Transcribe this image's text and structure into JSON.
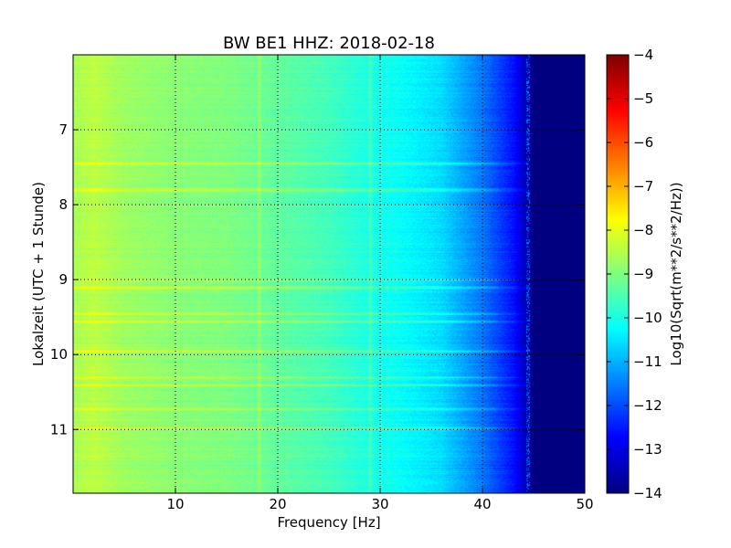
{
  "chart_data": {
    "type": "heatmap",
    "title": "BW BE1 HHZ: 2018-02-18",
    "xlabel": "Frequency [Hz]",
    "ylabel": "Lokalzeit (UTC + 1 Stunde)",
    "xlim": [
      0,
      50
    ],
    "ylim": [
      11.85,
      6.0
    ],
    "y_axis_inverted": true,
    "x_ticks": [
      10,
      20,
      30,
      40,
      50
    ],
    "y_ticks": [
      7,
      8,
      9,
      10,
      11
    ],
    "grid": true,
    "colorbar": {
      "label": "Log10(Sqrt(m**2/s**2/Hz))",
      "range": [
        -14,
        -4
      ],
      "ticks": [
        -4,
        -5,
        -6,
        -7,
        -8,
        -9,
        -10,
        -11,
        -12,
        -13,
        -14
      ],
      "colormap": "jet"
    },
    "frequency_profile": [
      {
        "freq": 0,
        "value": -8.6
      },
      {
        "freq": 2,
        "value": -8.4
      },
      {
        "freq": 5,
        "value": -8.7
      },
      {
        "freq": 10,
        "value": -8.9
      },
      {
        "freq": 15,
        "value": -9.0
      },
      {
        "freq": 20,
        "value": -9.3
      },
      {
        "freq": 25,
        "value": -9.6
      },
      {
        "freq": 28,
        "value": -9.9
      },
      {
        "freq": 32,
        "value": -10.2
      },
      {
        "freq": 36,
        "value": -10.6
      },
      {
        "freq": 40,
        "value": -11.6
      },
      {
        "freq": 43,
        "value": -12.6
      },
      {
        "freq": 45,
        "value": -14.0
      },
      {
        "freq": 50,
        "value": -14.0
      }
    ],
    "vertical_lines_hz": [
      18.2,
      29.0
    ],
    "bright_bands_hours": [
      7.45,
      7.8,
      9.0,
      9.1,
      9.45,
      9.55,
      9.95,
      10.3,
      10.4,
      10.72,
      10.98
    ]
  }
}
